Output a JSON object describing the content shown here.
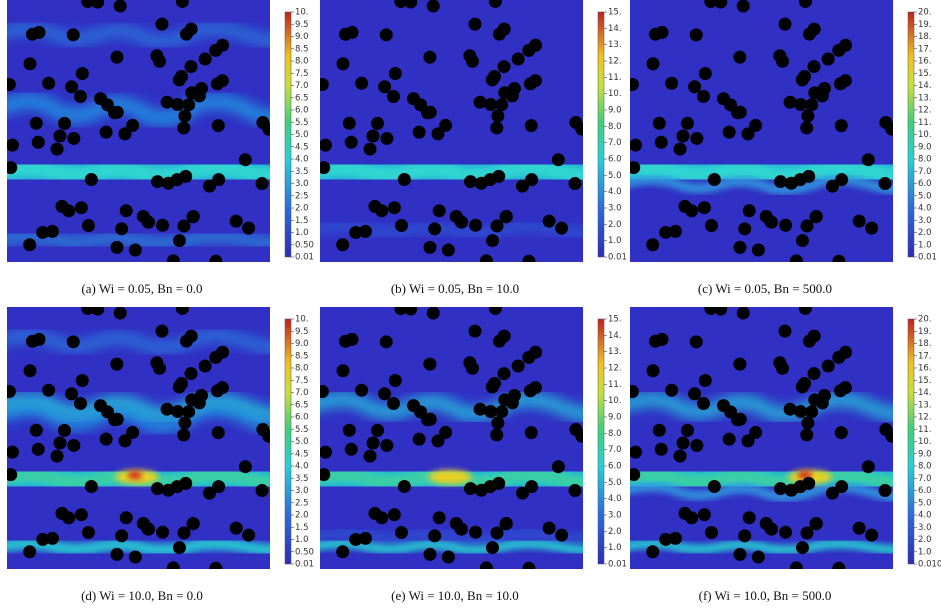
{
  "panels": [
    {
      "caption": "(a) Wi = 0.05, Bn = 0.0",
      "colorbar": [
        "10.",
        "9.5",
        "9.0",
        "8.5",
        "8.0",
        "7.5",
        "7.0",
        "6.5",
        "6.0",
        "5.5",
        "5.0",
        "4.5",
        "4.0",
        "3.5",
        "3.0",
        "2.5",
        "2.0",
        "1.5",
        "1.0",
        "0.50",
        "0.01"
      ]
    },
    {
      "caption": "(b) Wi = 0.05, Bn = 10.0",
      "colorbar": [
        "15.",
        "14.",
        "13.",
        "12.",
        "11.",
        "10.",
        "9.0",
        "8.0",
        "7.0",
        "6.0",
        "5.0",
        "4.0",
        "3.0",
        "2.0",
        "1.0",
        "0.01"
      ]
    },
    {
      "caption": "(c) Wi = 0.05, Bn = 500.0",
      "colorbar": [
        "20.",
        "19.",
        "18.",
        "17.",
        "16.",
        "15.",
        "14.",
        "13.",
        "12.",
        "11.",
        "10.",
        "9.0",
        "8.0",
        "7.0",
        "6.0",
        "5.0",
        "4.0",
        "3.0",
        "2.0",
        "1.0",
        "0.01"
      ]
    },
    {
      "caption": "(d) Wi = 10.0, Bn = 0.0",
      "colorbar": [
        "10.",
        "9.5",
        "9.0",
        "8.5",
        "8.0",
        "7.5",
        "7.0",
        "6.5",
        "6.0",
        "5.5",
        "5.0",
        "4.5",
        "4.0",
        "3.5",
        "3.0",
        "2.5",
        "2.0",
        "1.5",
        "1.0",
        "0.50",
        "0.01"
      ]
    },
    {
      "caption": "(e) Wi = 10.0, Bn = 10.0",
      "colorbar": [
        "15.",
        "14.",
        "13.",
        "12.",
        "11.",
        "10.",
        "9.0",
        "8.0",
        "7.0",
        "6.0",
        "5.0",
        "4.0",
        "3.0",
        "2.0",
        "1.0",
        "0.01"
      ]
    },
    {
      "caption": "(f) Wi = 10.0, Bn = 500.0",
      "colorbar": [
        "20.",
        "19.",
        "18.",
        "17.",
        "16.",
        "15.",
        "14.",
        "13.",
        "12.",
        "11.",
        "10.",
        "9.0",
        "8.0",
        "7.0",
        "6.0",
        "5.0",
        "4.0",
        "3.0",
        "2.0",
        "1.0",
        "0.010"
      ]
    }
  ]
}
